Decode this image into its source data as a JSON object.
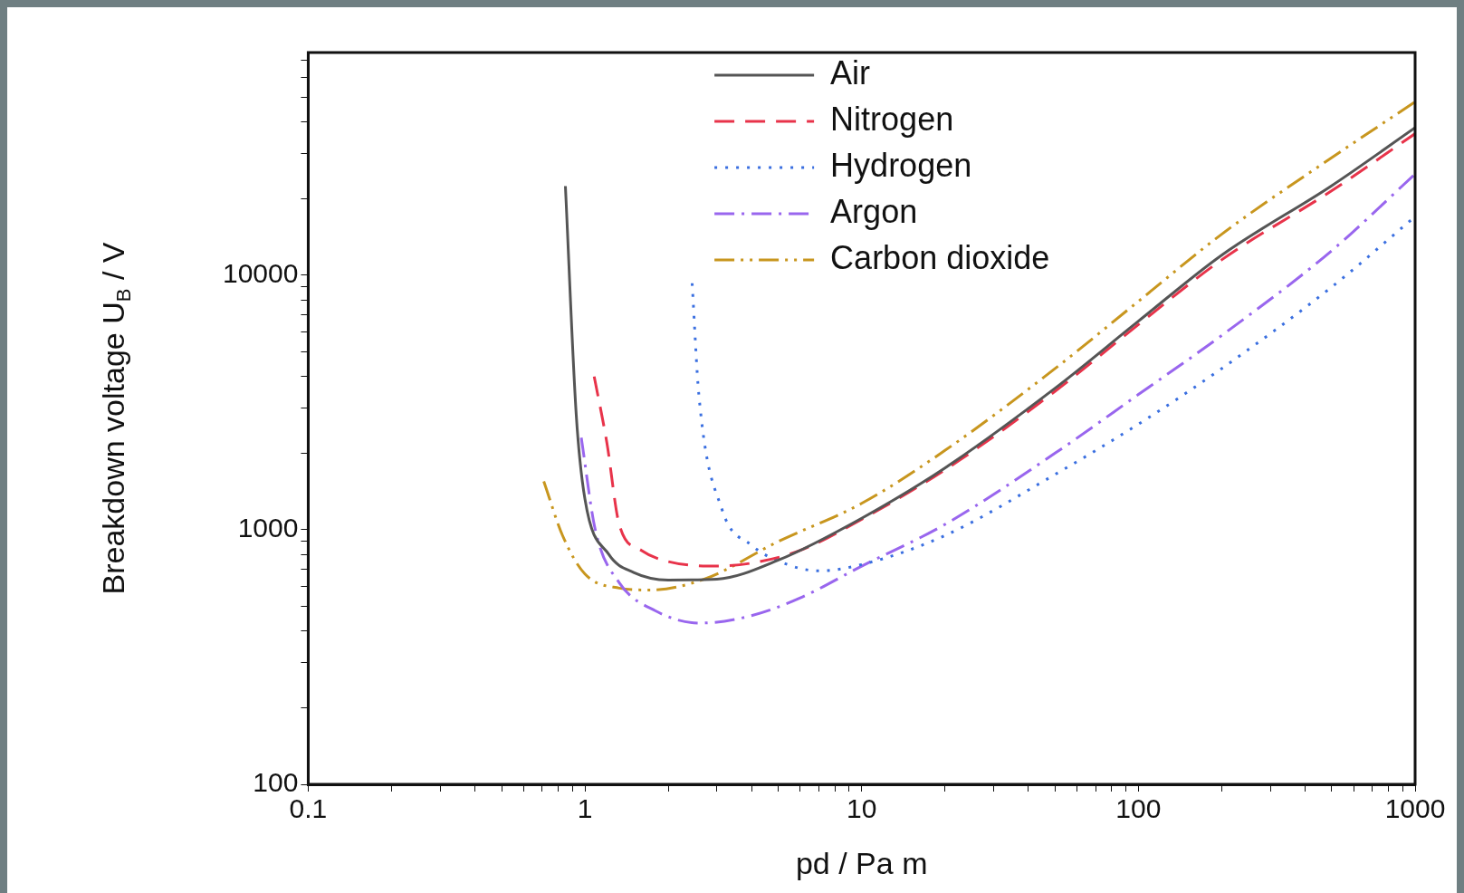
{
  "chart_data": {
    "type": "line",
    "xlabel": "pd / Pa m",
    "ylabel": "Breakdown voltage U$_{B}$ / V",
    "log": "xy",
    "grid": false,
    "legend": "top",
    "marker": "none",
    "xlim": [
      0.1,
      1000
    ],
    "ylim": [
      100,
      75000
    ],
    "xticks": [
      0.1,
      {
        "value": 0.2,
        "label": null
      },
      {
        "value": 0.3,
        "label": null
      },
      {
        "value": 0.4,
        "label": null
      },
      {
        "value": 0.5,
        "label": null
      },
      {
        "value": 0.6,
        "label": null
      },
      {
        "value": 0.7,
        "label": null
      },
      {
        "value": 0.8,
        "label": null
      },
      {
        "value": 0.9,
        "label": null
      },
      1,
      {
        "value": 2,
        "label": null
      },
      {
        "value": 3,
        "label": null
      },
      {
        "value": 4,
        "label": null
      },
      {
        "value": 5,
        "label": null
      },
      {
        "value": 6,
        "label": null
      },
      {
        "value": 7,
        "label": null
      },
      {
        "value": 8,
        "label": null
      },
      {
        "value": 9,
        "label": null
      },
      10,
      {
        "value": 20,
        "label": null
      },
      {
        "value": 30,
        "label": null
      },
      {
        "value": 40,
        "label": null
      },
      {
        "value": 50,
        "label": null
      },
      {
        "value": 60,
        "label": null
      },
      {
        "value": 70,
        "label": null
      },
      {
        "value": 80,
        "label": null
      },
      {
        "value": 90,
        "label": null
      },
      100,
      {
        "value": 200,
        "label": null
      },
      {
        "value": 300,
        "label": null
      },
      {
        "value": 400,
        "label": null
      },
      {
        "value": 500,
        "label": null
      },
      {
        "value": 600,
        "label": null
      },
      {
        "value": 700,
        "label": null
      },
      {
        "value": 800,
        "label": null
      },
      {
        "value": 900,
        "label": null
      },
      1000
    ],
    "yticks": [
      100,
      {
        "value": 200,
        "label": null
      },
      {
        "value": 300,
        "label": null
      },
      {
        "value": 400,
        "label": null
      },
      {
        "value": 500,
        "label": null
      },
      {
        "value": 600,
        "label": null
      },
      {
        "value": 700,
        "label": null
      },
      {
        "value": 800,
        "label": null
      },
      {
        "value": 900,
        "label": null
      },
      1000,
      {
        "value": 2000,
        "label": null
      },
      {
        "value": 3000,
        "label": null
      },
      {
        "value": 4000,
        "label": null
      },
      {
        "value": 5000,
        "label": null
      },
      {
        "value": 6000,
        "label": null
      },
      {
        "value": 7000,
        "label": null
      },
      {
        "value": 8000,
        "label": null
      },
      {
        "value": 9000,
        "label": null
      },
      10000,
      {
        "value": 20000,
        "label": null
      },
      {
        "value": 30000,
        "label": null
      },
      {
        "value": 40000,
        "label": null
      },
      {
        "value": 50000,
        "label": null
      },
      {
        "value": 60000,
        "label": null
      },
      {
        "value": 70000,
        "label": null
      }
    ],
    "series": [
      {
        "name": "Air",
        "color": "#555555",
        "line_style": "solid",
        "x": [
          0.85,
          0.93,
          1,
          1.22,
          1.5,
          2,
          3,
          5,
          10,
          20,
          50,
          100,
          200,
          500,
          1000
        ],
        "values": [
          22400,
          2840,
          1320,
          800,
          680,
          635,
          640,
          760,
          1110,
          1750,
          3600,
          6600,
          12000,
          22500,
          38000
        ]
      },
      {
        "name": "Nitrogen",
        "color": "#e8334a",
        "line_style": "dashed",
        "x": [
          1.08,
          1.2,
          1.33,
          1.6,
          2,
          3,
          4,
          6,
          10,
          20,
          50,
          100,
          200,
          500,
          1000
        ],
        "values": [
          4000,
          2200,
          1050,
          830,
          750,
          720,
          740,
          830,
          1100,
          1720,
          3500,
          6400,
          11500,
          21500,
          36000
        ]
      },
      {
        "name": "Hydrogen",
        "color": "#3a6fe0",
        "line_style": "dotted",
        "x": [
          2.44,
          2.58,
          3.13,
          4,
          5.4,
          7,
          10,
          20,
          50,
          100,
          200,
          500,
          1000
        ],
        "values": [
          9300,
          3400,
          1200,
          870,
          730,
          690,
          730,
          950,
          1650,
          2600,
          4300,
          9000,
          17000
        ]
      },
      {
        "name": "Argon",
        "color": "#9966ee",
        "line_style": "dashdot",
        "x": [
          0.97,
          1.09,
          1.33,
          1.8,
          2.6,
          4,
          6,
          10,
          20,
          50,
          100,
          200,
          500,
          1000
        ],
        "values": [
          2300,
          1000,
          620,
          480,
          430,
          460,
          540,
          720,
          1050,
          2000,
          3400,
          5800,
          12500,
          25000
        ]
      },
      {
        "name": "Carbon dioxide",
        "color": "#c8961e",
        "line_style": "dashdotdot",
        "x": [
          0.71,
          0.83,
          1,
          1.33,
          1.7,
          2.7,
          5,
          10,
          20,
          50,
          100,
          200,
          500,
          1000
        ],
        "values": [
          1550,
          950,
          670,
          590,
          580,
          640,
          900,
          1270,
          2050,
          4300,
          7900,
          14500,
          29000,
          48000
        ]
      }
    ]
  }
}
